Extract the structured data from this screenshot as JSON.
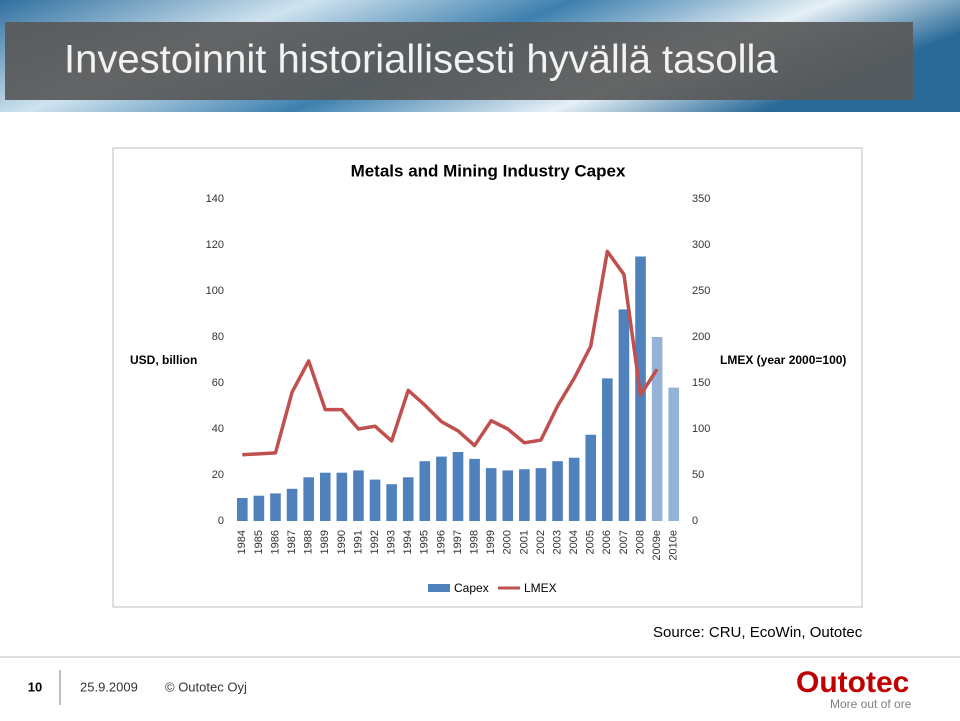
{
  "slide": {
    "title": "Investoinnit historiallisesti hyvällä tasolla",
    "source": "Source: CRU, EcoWin, Outotec",
    "footer": {
      "page": "10",
      "date": "25.9.2009",
      "copyright": "© Outotec Oyj"
    },
    "logo": {
      "name": "Outotec",
      "tagline": "More out of ore"
    }
  },
  "chart_data": {
    "type": "bar",
    "title": "Metals and Mining Industry Capex",
    "ylabel": "USD, billion",
    "y2label": "LMEX (year 2000=100)",
    "categories": [
      "1984",
      "1985",
      "1986",
      "1987",
      "1988",
      "1989",
      "1990",
      "1991",
      "1992",
      "1993",
      "1994",
      "1995",
      "1996",
      "1997",
      "1998",
      "1999",
      "2000",
      "2001",
      "2002",
      "2003",
      "2004",
      "2005",
      "2006",
      "2007",
      "2008",
      "2009e",
      "2010e"
    ],
    "series": [
      {
        "name": "Capex",
        "type": "bar",
        "color": "#4f81bd",
        "colors": [
          "#4f81bd",
          "#4f81bd",
          "#4f81bd",
          "#4f81bd",
          "#4f81bd",
          "#4f81bd",
          "#4f81bd",
          "#4f81bd",
          "#4f81bd",
          "#4f81bd",
          "#4f81bd",
          "#4f81bd",
          "#4f81bd",
          "#4f81bd",
          "#4f81bd",
          "#4f81bd",
          "#4f81bd",
          "#4f81bd",
          "#4f81bd",
          "#4f81bd",
          "#4f81bd",
          "#4f81bd",
          "#4f81bd",
          "#4f81bd",
          "#4f81bd",
          "#95b3d7",
          "#95b3d7"
        ],
        "values": [
          10,
          11,
          12,
          14,
          19,
          21,
          21,
          22,
          18,
          16,
          19,
          26,
          28,
          30,
          27,
          23,
          22,
          22.5,
          23,
          26,
          27.5,
          37.5,
          62,
          92,
          115,
          80,
          58
        ]
      },
      {
        "name": "LMEX",
        "type": "line",
        "axis": "y2",
        "color": "#c0504d",
        "values": [
          72,
          73,
          74,
          140,
          174,
          121,
          121,
          100,
          103,
          87,
          142,
          126,
          108,
          98,
          82,
          109,
          100,
          85,
          88,
          125,
          155,
          190,
          293,
          268,
          137,
          165,
          null
        ]
      }
    ],
    "ylim": [
      0,
      140
    ],
    "yticks": [
      0,
      20,
      40,
      60,
      80,
      100,
      120,
      140
    ],
    "y2lim": [
      0,
      350
    ],
    "y2ticks": [
      0,
      50,
      100,
      150,
      200,
      250,
      300,
      350
    ],
    "grid": false,
    "legend": "bottom"
  }
}
